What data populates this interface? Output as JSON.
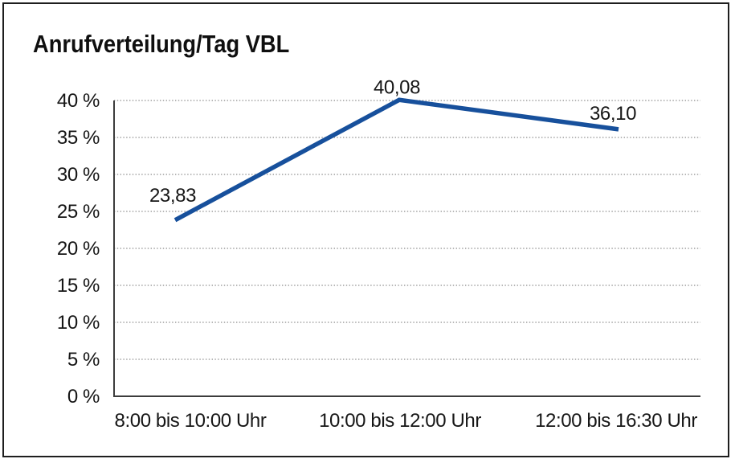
{
  "frame": {
    "background": "#ffffff",
    "border_color": "#1e1e1e"
  },
  "chart_data": {
    "type": "line",
    "title": "Anrufverteilung/Tag VBL",
    "categories": [
      "8:00 bis 10:00 Uhr",
      "10:00 bis 12:00 Uhr",
      "12:00 bis 16:30 Uhr"
    ],
    "values": [
      23.83,
      40.08,
      36.1
    ],
    "data_labels": [
      "23,83",
      "40,08",
      "36,10"
    ],
    "xlabel": "",
    "ylabel": "",
    "ylim": [
      0,
      40
    ],
    "ytick_step": 5,
    "ytick_labels": [
      "0 %",
      "5 %",
      "10 %",
      "15 %",
      "20 %",
      "25 %",
      "30 %",
      "35 %",
      "40 %"
    ],
    "grid": "horizontal dotted",
    "legend": "none",
    "colors": {
      "line": "#17509c",
      "grid": "#8a8a8a",
      "axis": "#3c3c3c",
      "text": "#161616",
      "title": "#0f0f0f"
    }
  }
}
